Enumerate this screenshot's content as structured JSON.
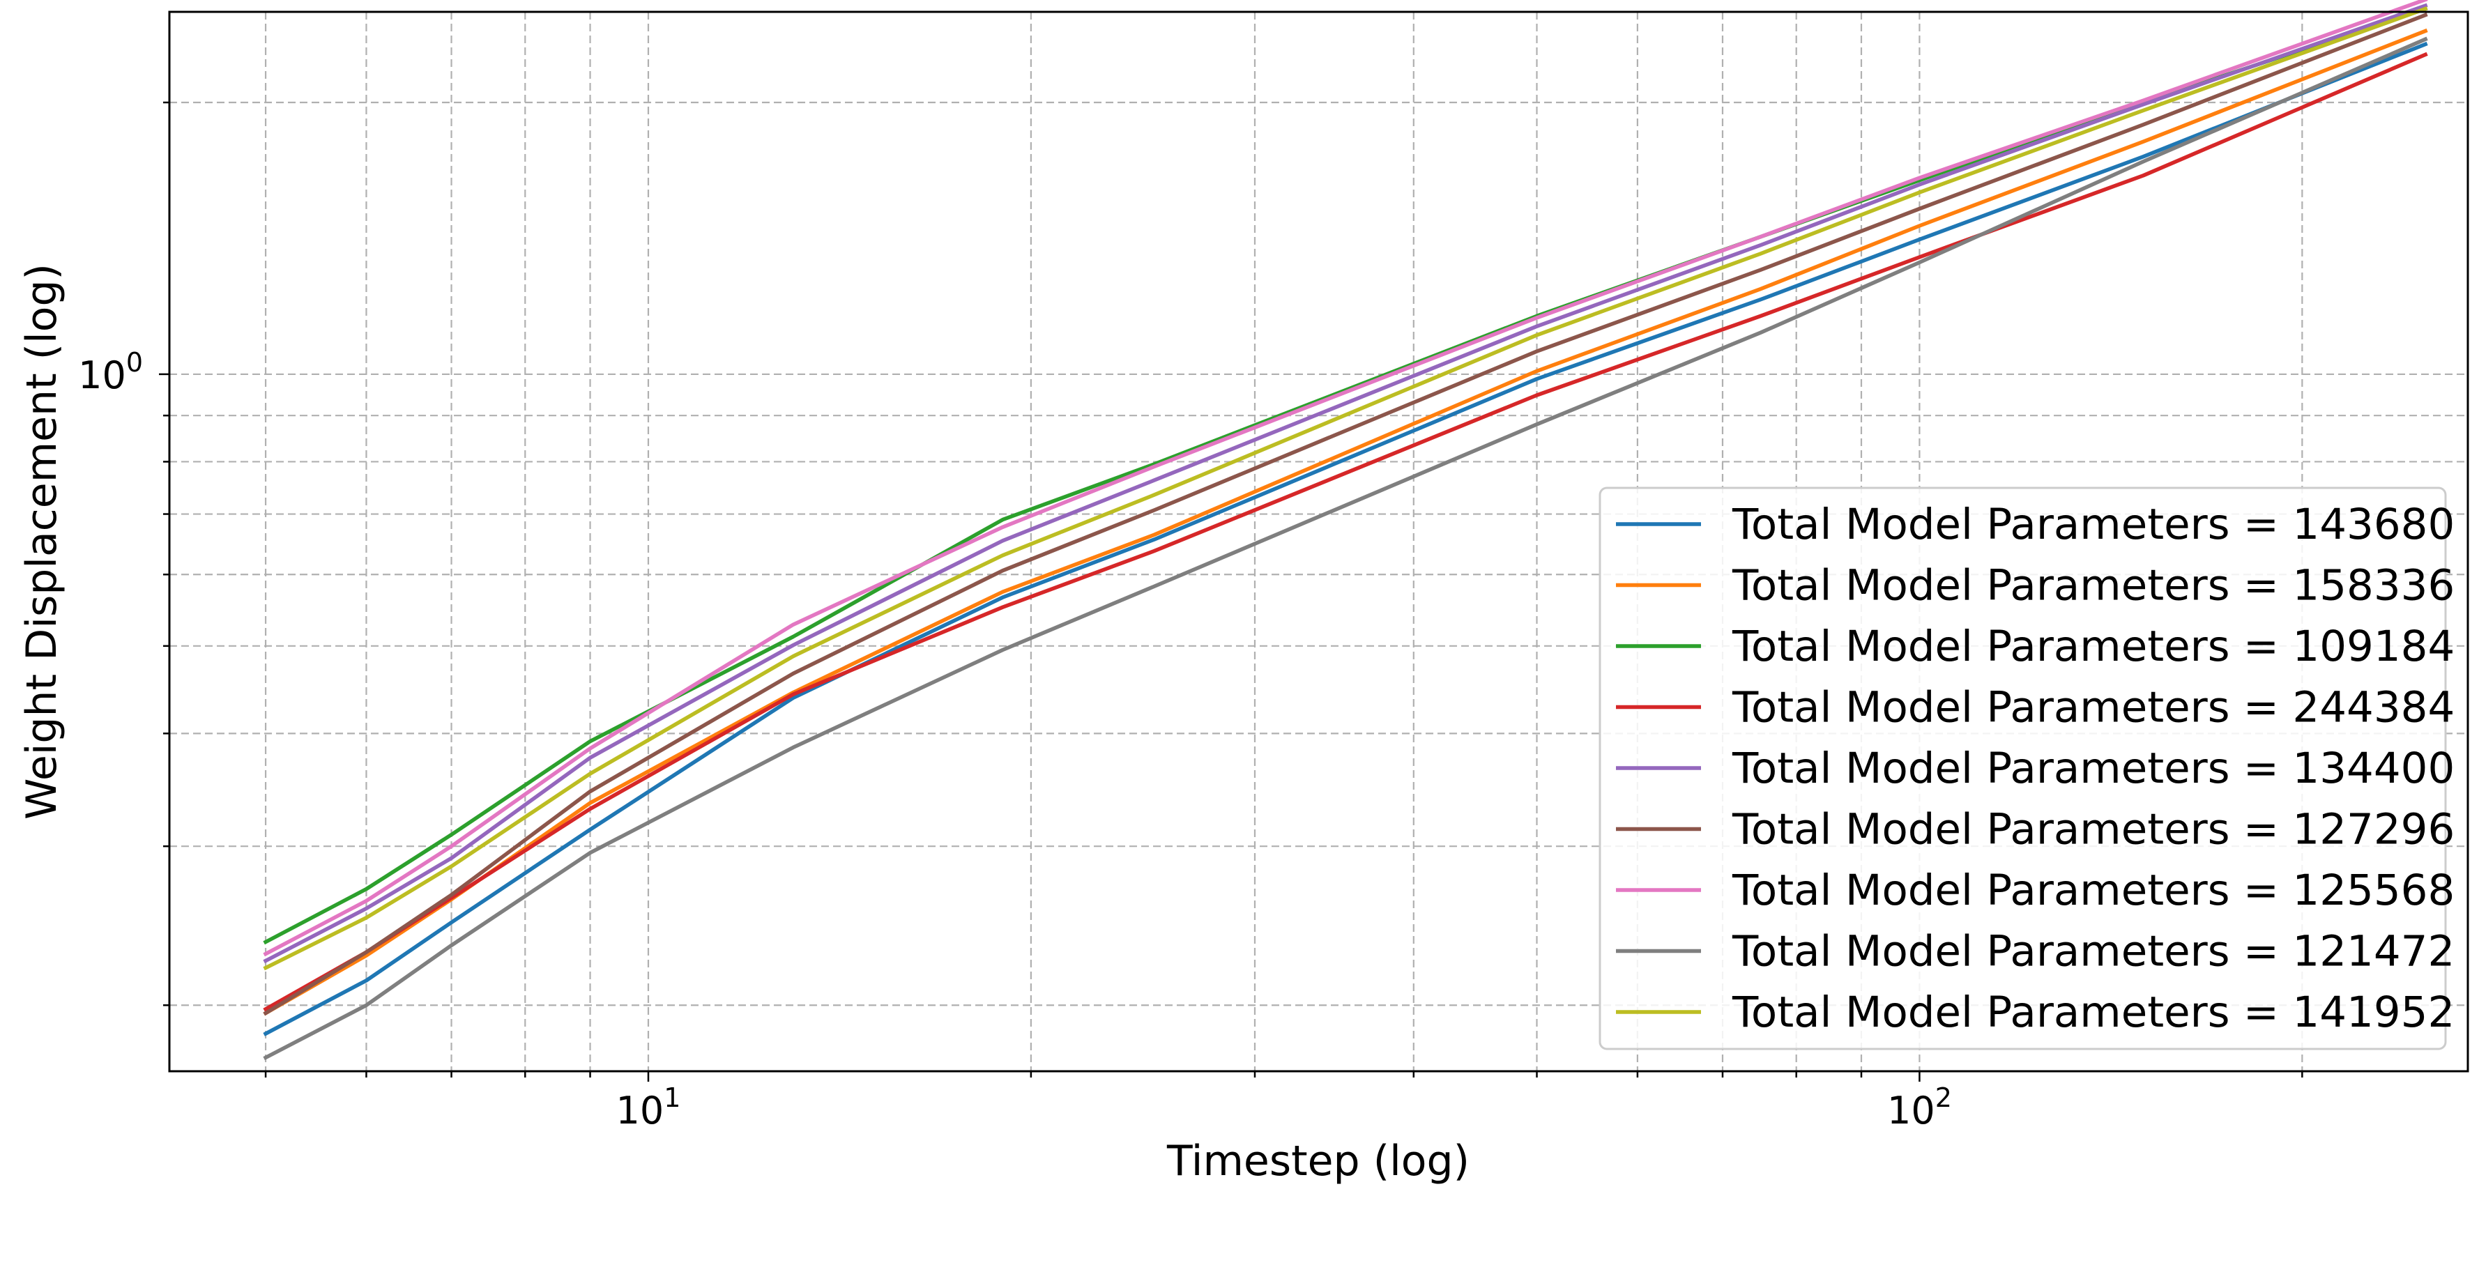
{
  "chart_data": {
    "type": "line",
    "title": "",
    "xlabel": "Timestep (log)",
    "ylabel": "Weight Displacement (log)",
    "xscale": "log",
    "yscale": "log",
    "xlim": [
      4.2,
      270
    ],
    "ylim": [
      0.169,
      2.52
    ],
    "grid": "on",
    "legend_position": "lower-right",
    "x_ticks": [
      {
        "base": "10",
        "exp": "1",
        "value": 10
      },
      {
        "base": "10",
        "exp": "2",
        "value": 100
      }
    ],
    "y_ticks": [
      {
        "base": "10",
        "exp": "0",
        "value": 1
      }
    ],
    "x": [
      5,
      6,
      7,
      9,
      13,
      19,
      25,
      50,
      75,
      100,
      150,
      250
    ],
    "series": [
      {
        "name": "Total Model Parameters = 143680",
        "color": "#1f77b4",
        "values": [
          0.186,
          0.213,
          0.247,
          0.313,
          0.438,
          0.566,
          0.656,
          0.988,
          1.21,
          1.41,
          1.742,
          2.32
        ]
      },
      {
        "name": "Total Model Parameters = 158336",
        "color": "#ff7f0e",
        "values": [
          0.196,
          0.227,
          0.262,
          0.335,
          0.444,
          0.574,
          0.664,
          1.008,
          1.243,
          1.46,
          1.81,
          2.4
        ]
      },
      {
        "name": "Total Model Parameters = 109184",
        "color": "#2ca02c",
        "values": [
          0.235,
          0.269,
          0.309,
          0.392,
          0.512,
          0.69,
          0.795,
          1.16,
          1.42,
          1.64,
          2.0,
          2.54
        ]
      },
      {
        "name": "Total Model Parameters = 244384",
        "color": "#d62728",
        "values": [
          0.198,
          0.229,
          0.263,
          0.33,
          0.442,
          0.552,
          0.637,
          0.948,
          1.16,
          1.348,
          1.66,
          2.26
        ]
      },
      {
        "name": "Total Model Parameters = 134400",
        "color": "#9467bd",
        "values": [
          0.224,
          0.256,
          0.291,
          0.376,
          0.501,
          0.654,
          0.763,
          1.13,
          1.39,
          1.622,
          1.99,
          2.56
        ]
      },
      {
        "name": "Total Model Parameters = 127296",
        "color": "#8c564b",
        "values": [
          0.196,
          0.229,
          0.265,
          0.345,
          0.466,
          0.606,
          0.707,
          1.06,
          1.305,
          1.525,
          1.89,
          2.5
        ]
      },
      {
        "name": "Total Model Parameters = 125568",
        "color": "#e377c2",
        "values": [
          0.228,
          0.261,
          0.3,
          0.385,
          0.528,
          0.677,
          0.79,
          1.155,
          1.42,
          1.65,
          2.01,
          2.6
        ]
      },
      {
        "name": "Total Model Parameters = 121472",
        "color": "#7f7f7f",
        "values": [
          0.175,
          0.2,
          0.233,
          0.295,
          0.386,
          0.495,
          0.582,
          0.88,
          1.112,
          1.33,
          1.72,
          2.35
        ]
      },
      {
        "name": "Total Model Parameters = 141952",
        "color": "#bcbd22",
        "values": [
          0.22,
          0.25,
          0.285,
          0.361,
          0.487,
          0.63,
          0.735,
          1.105,
          1.36,
          1.59,
          1.96,
          2.54
        ]
      }
    ]
  }
}
